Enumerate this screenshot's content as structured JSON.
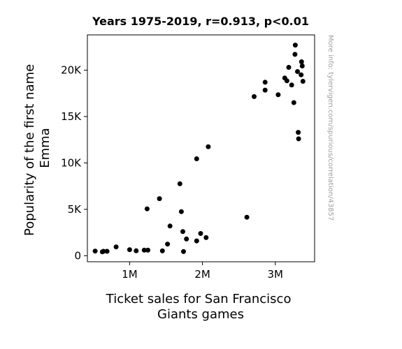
{
  "chart_data": {
    "type": "scatter",
    "title": "Years 1975-2019, r=0.913, p<0.01",
    "xlabel": [
      "Ticket sales for San Francisco",
      "Giants games"
    ],
    "ylabel": [
      "Popularity of the first name",
      "Emma"
    ],
    "xlim": [
      420000,
      3540000
    ],
    "ylim": [
      -650,
      23800
    ],
    "x_ticks": [
      {
        "value": 1000000,
        "label": "1M"
      },
      {
        "value": 2000000,
        "label": "2M"
      },
      {
        "value": 3000000,
        "label": "3M"
      }
    ],
    "y_ticks": [
      {
        "value": 0,
        "label": "0"
      },
      {
        "value": 5000,
        "label": "5K"
      },
      {
        "value": 10000,
        "label": "10K"
      },
      {
        "value": 15000,
        "label": "15K"
      },
      {
        "value": 20000,
        "label": "20K"
      }
    ],
    "grid": false,
    "marker_color": "#000000",
    "points": [
      [
        527000,
        500
      ],
      [
        625000,
        420
      ],
      [
        640000,
        480
      ],
      [
        690000,
        480
      ],
      [
        815000,
        950
      ],
      [
        1000000,
        650
      ],
      [
        1090000,
        530
      ],
      [
        1200000,
        600
      ],
      [
        1250000,
        600
      ],
      [
        1240000,
        5050
      ],
      [
        1410000,
        6150
      ],
      [
        1450000,
        520
      ],
      [
        1520000,
        1250
      ],
      [
        1555000,
        3200
      ],
      [
        1690000,
        7750
      ],
      [
        1710000,
        4750
      ],
      [
        1730000,
        2600
      ],
      [
        1740000,
        450
      ],
      [
        1780000,
        1800
      ],
      [
        1920000,
        10450
      ],
      [
        1920000,
        1600
      ],
      [
        1975000,
        2400
      ],
      [
        2050000,
        1950
      ],
      [
        2080000,
        11750
      ],
      [
        2610000,
        4150
      ],
      [
        2710000,
        17150
      ],
      [
        2860000,
        18700
      ],
      [
        2860000,
        17850
      ],
      [
        3040000,
        17350
      ],
      [
        3130000,
        19150
      ],
      [
        3160000,
        18850
      ],
      [
        3185000,
        20300
      ],
      [
        3225000,
        18400
      ],
      [
        3255000,
        16500
      ],
      [
        3270000,
        21700
      ],
      [
        3275000,
        22700
      ],
      [
        3305000,
        19850
      ],
      [
        3315000,
        13300
      ],
      [
        3320000,
        12600
      ],
      [
        3355000,
        19500
      ],
      [
        3360000,
        20900
      ],
      [
        3370000,
        20450
      ],
      [
        3380000,
        18800
      ]
    ]
  },
  "watermark": "More info: tylervigen.com/spurious/correlation/43857"
}
